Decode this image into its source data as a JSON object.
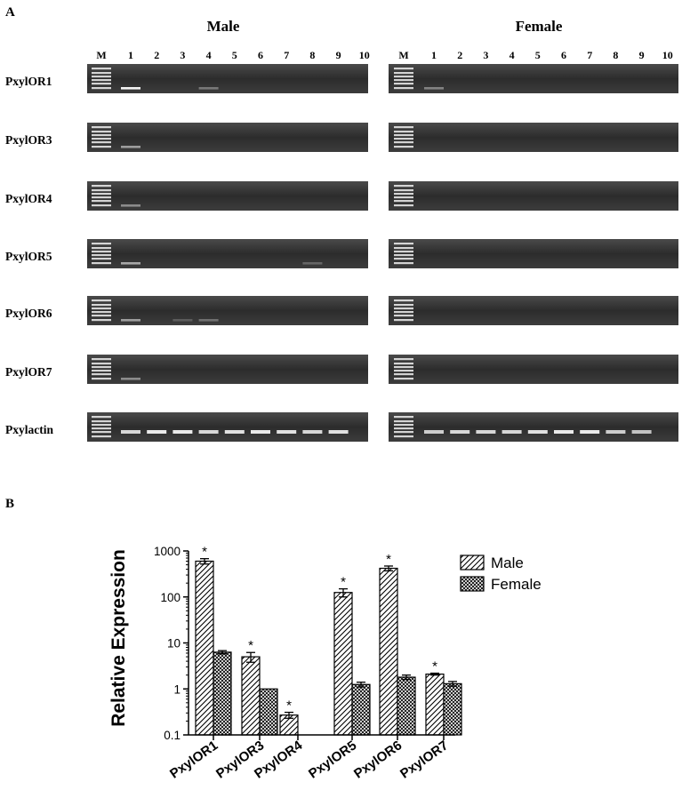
{
  "panel_a": {
    "label": "A",
    "sexes": [
      "Male",
      "Female"
    ],
    "lane_labels": [
      "M",
      "1",
      "2",
      "3",
      "4",
      "5",
      "6",
      "7",
      "8",
      "9",
      "10"
    ],
    "genes": [
      "PxylOR1",
      "PxylOR3",
      "PxylOR4",
      "PxylOR5",
      "PxylOR6",
      "PxylOR7",
      "Pxylactin"
    ],
    "bands": {
      "Male": {
        "PxylOR1": [
          1.0,
          0,
          0,
          0.35,
          0,
          0,
          0,
          0,
          0,
          0
        ],
        "PxylOR3": [
          0.55,
          0,
          0,
          0,
          0,
          0,
          0,
          0,
          0,
          0
        ],
        "PxylOR4": [
          0.45,
          0,
          0,
          0,
          0,
          0,
          0,
          0,
          0,
          0
        ],
        "PxylOR5": [
          0.6,
          0,
          0,
          0,
          0,
          0,
          0,
          0.25,
          0,
          0
        ],
        "PxylOR6": [
          0.55,
          0,
          0.2,
          0.3,
          0,
          0,
          0,
          0,
          0,
          0
        ],
        "PxylOR7": [
          0.45,
          0,
          0,
          0,
          0,
          0,
          0,
          0,
          0,
          0
        ],
        "Pxylactin": [
          0.85,
          0.95,
          0.95,
          0.85,
          0.9,
          0.95,
          0.9,
          0.85,
          0.9,
          0
        ]
      },
      "Female": {
        "PxylOR1": [
          0.4,
          0,
          0,
          0,
          0,
          0,
          0,
          0,
          0,
          0
        ],
        "PxylOR3": [
          0,
          0,
          0,
          0,
          0,
          0,
          0,
          0,
          0,
          0
        ],
        "PxylOR4": [
          0,
          0,
          0,
          0,
          0,
          0,
          0,
          0,
          0,
          0
        ],
        "PxylOR5": [
          0,
          0,
          0,
          0,
          0,
          0,
          0,
          0,
          0,
          0
        ],
        "PxylOR6": [
          0,
          0,
          0,
          0,
          0,
          0,
          0,
          0,
          0,
          0
        ],
        "PxylOR7": [
          0,
          0,
          0,
          0,
          0,
          0,
          0,
          0,
          0,
          0
        ],
        "Pxylactin": [
          0.8,
          0.85,
          0.85,
          0.85,
          0.9,
          0.95,
          0.95,
          0.8,
          0.75,
          0
        ]
      }
    }
  },
  "panel_b": {
    "label": "B"
  },
  "chart_data": {
    "type": "bar",
    "ylabel": "Relative Expression",
    "xlabel": "",
    "yscale": "log",
    "ylim": [
      0.1,
      1000
    ],
    "yticks": [
      "0.1",
      "1",
      "10",
      "100",
      "1000"
    ],
    "categories": [
      "PxylOR1",
      "PxylOR3",
      "PxylOR4",
      "PxylOR5",
      "PxylOR6",
      "PxylOR7"
    ],
    "series": [
      {
        "name": "Male",
        "pattern": "diagonal-hatch",
        "values": [
          600,
          5,
          0.27,
          125,
          420,
          2.1
        ],
        "errors": [
          80,
          1.2,
          0.04,
          25,
          50,
          0.1
        ],
        "significance": [
          "*",
          "*",
          "*",
          "*",
          "*",
          "*"
        ]
      },
      {
        "name": "Female",
        "pattern": "crosshatch",
        "values": [
          6.3,
          1.0,
          null,
          1.25,
          1.8,
          1.3
        ],
        "errors": [
          0.5,
          0,
          null,
          0.15,
          0.2,
          0.15
        ],
        "significance": [
          "",
          "",
          "",
          "",
          "",
          ""
        ]
      }
    ],
    "legend_position": "top-right"
  }
}
